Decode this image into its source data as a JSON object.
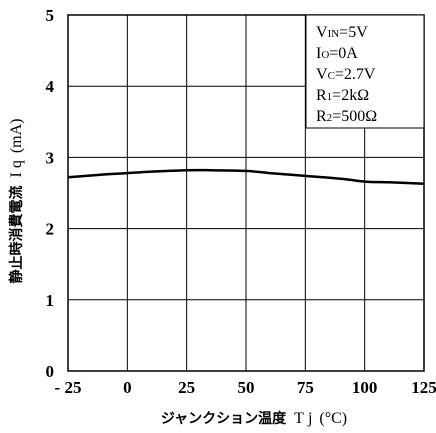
{
  "chart_data": {
    "type": "line",
    "xlabel": {
      "jp": "ジャンクション温度",
      "symbol": "T",
      "sub": "j",
      "unit": "(°C)"
    },
    "ylabel": {
      "jp": "静止時消費電流",
      "symbol": "I",
      "sub": "q",
      "unit": "(mA)"
    },
    "xlim": [
      -25,
      125
    ],
    "ylim": [
      0,
      5
    ],
    "x_ticks": [
      -25,
      0,
      25,
      50,
      75,
      100,
      125
    ],
    "x_tick_labels": [
      "- 25",
      "0",
      "25",
      "50",
      "75",
      "100",
      "125"
    ],
    "y_ticks": [
      0,
      1,
      2,
      3,
      4,
      5
    ],
    "y_tick_labels": [
      "0",
      "1",
      "2",
      "3",
      "4",
      "5"
    ],
    "grid": true,
    "legend_placement": "top-right",
    "conditions": [
      {
        "main": "V",
        "sub": "IN",
        "rest": "=5V"
      },
      {
        "main": "I",
        "sub": "O",
        "rest": "=0A"
      },
      {
        "main": "V",
        "sub": "C",
        "rest": "=2.7V"
      },
      {
        "main": "R",
        "sub": "1",
        "rest": "=2kΩ"
      },
      {
        "main": "R",
        "sub": "2",
        "rest": "=500Ω"
      }
    ],
    "series": [
      {
        "x": [
          -25,
          -10,
          0,
          10,
          25,
          35,
          50,
          60,
          75,
          90,
          100,
          110,
          125
        ],
        "y": [
          2.72,
          2.76,
          2.78,
          2.8,
          2.82,
          2.82,
          2.81,
          2.78,
          2.74,
          2.7,
          2.66,
          2.65,
          2.63
        ]
      }
    ]
  }
}
